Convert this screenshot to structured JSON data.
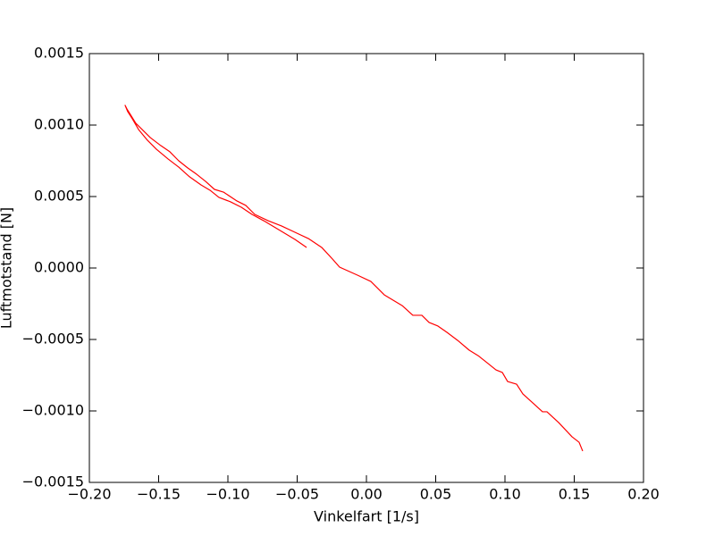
{
  "chart_data": {
    "type": "line",
    "x_label": "Vinkelfart [1/s]",
    "y_label": "Luftmotstand [N]",
    "xlim": [
      -0.2,
      0.2
    ],
    "ylim": [
      -0.0015,
      0.0015
    ],
    "xticks": [
      {
        "value": -0.2,
        "label": "−0.20"
      },
      {
        "value": -0.15,
        "label": "−0.15"
      },
      {
        "value": -0.1,
        "label": "−0.10"
      },
      {
        "value": -0.05,
        "label": "−0.05"
      },
      {
        "value": 0,
        "label": "0.00"
      },
      {
        "value": 0.05,
        "label": "0.05"
      },
      {
        "value": 0.1,
        "label": "0.10"
      },
      {
        "value": 0.15,
        "label": "0.15"
      },
      {
        "value": 0.2,
        "label": "0.20"
      }
    ],
    "yticks": [
      {
        "value": -0.0015,
        "label": "−0.0015"
      },
      {
        "value": -0.001,
        "label": "−0.0010"
      },
      {
        "value": -0.0005,
        "label": "−0.0005"
      },
      {
        "value": 0,
        "label": "0.0000"
      },
      {
        "value": 0.0005,
        "label": "0.0005"
      },
      {
        "value": 0.001,
        "label": "0.0010"
      },
      {
        "value": 0.0015,
        "label": "0.0015"
      }
    ],
    "series": [
      {
        "color": "#ff0000",
        "x": [
          -0.0432,
          -0.0516,
          -0.0645,
          -0.0742,
          -0.0826,
          -0.0903,
          -0.0981,
          -0.1065,
          -0.1129,
          -0.1194,
          -0.1277,
          -0.1355,
          -0.1432,
          -0.1516,
          -0.1581,
          -0.1645,
          -0.169,
          -0.1723,
          -0.1742,
          -0.1729,
          -0.1697,
          -0.1665,
          -0.1613,
          -0.1561,
          -0.1484,
          -0.1419,
          -0.1355,
          -0.129,
          -0.1226,
          -0.1161,
          -0.1097,
          -0.1032,
          -0.0935,
          -0.0871,
          -0.0806,
          -0.071,
          -0.0613,
          -0.0516,
          -0.0419,
          -0.0323,
          -0.0245,
          -0.0194,
          -0.0065,
          0.0032,
          0.0129,
          0.0258,
          0.0335,
          0.04,
          0.0452,
          0.0516,
          0.0581,
          0.0658,
          0.0742,
          0.0806,
          0.0871,
          0.0935,
          0.0981,
          0.1019,
          0.1084,
          0.1129,
          0.1194,
          0.1271,
          0.1303,
          0.1387,
          0.1484,
          0.1535,
          0.1561
        ],
        "values": [
          0.000144,
          0.0002,
          0.000275,
          0.000331,
          0.000375,
          0.000425,
          0.000463,
          0.000494,
          0.000544,
          0.000581,
          0.000638,
          0.000706,
          0.000763,
          0.000831,
          0.000894,
          0.000969,
          0.001044,
          0.001094,
          0.001138,
          0.001113,
          0.001063,
          0.001013,
          0.000963,
          0.000913,
          0.000856,
          0.000813,
          0.00075,
          0.0007,
          0.000656,
          0.000606,
          0.00055,
          0.000531,
          0.000469,
          0.000438,
          0.000375,
          0.000331,
          0.000294,
          0.00025,
          0.000206,
          0.000144,
          6.25e-05,
          6.3e-06,
          -5e-05,
          -9.4e-05,
          -0.000188,
          -0.000263,
          -0.000331,
          -0.000331,
          -0.000381,
          -0.000406,
          -0.00045,
          -0.000506,
          -0.000575,
          -0.000613,
          -0.000663,
          -0.000713,
          -0.000731,
          -0.000794,
          -0.000813,
          -0.000881,
          -0.000938,
          -0.001006,
          -0.001006,
          -0.001081,
          -0.001181,
          -0.001219,
          -0.001281
        ]
      }
    ]
  }
}
